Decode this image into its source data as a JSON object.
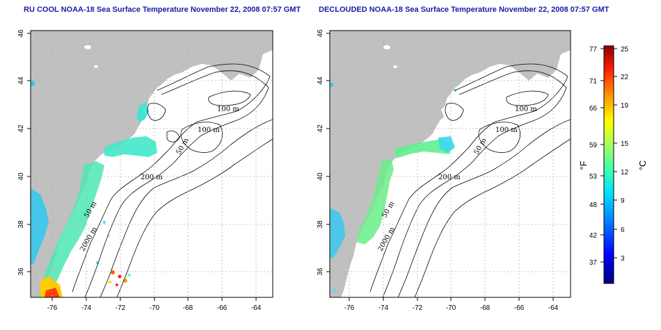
{
  "panels": [
    {
      "id": "left",
      "title": "RU COOL NOAA-18 Sea Surface Temperature November 22, 2008 07:57 GMT"
    },
    {
      "id": "right",
      "title": "DECLOUDED NOAA-18 Sea Surface Temperature November 22, 2008 07:57 GMT"
    }
  ],
  "axes": {
    "lon_ticks": [
      "-76",
      "-74",
      "-72",
      "-70",
      "-68",
      "-66",
      "-64"
    ],
    "lat_ticks": [
      "46",
      "44",
      "42",
      "40",
      "38",
      "36"
    ],
    "lon_range": [
      -77.2,
      -62.8
    ],
    "lat_range": [
      35,
      46
    ],
    "grid": true
  },
  "contour_labels": [
    "100 m",
    "100 m",
    "50 m",
    "200 m",
    "50 m",
    "2000 m"
  ],
  "colorbar": {
    "fahrenheit_label": "°F",
    "celsius_label": "°C",
    "fahrenheit_ticks": [
      "77",
      "71",
      "66",
      "59",
      "53",
      "48",
      "42",
      "37"
    ],
    "celsius_ticks": [
      "25",
      "22",
      "19",
      "15",
      "12",
      "9",
      "6",
      "3"
    ],
    "celsius_range": [
      0,
      25
    ],
    "colors": [
      "#00007f",
      "#0000ff",
      "#0080ff",
      "#00e0ff",
      "#40ffc0",
      "#a0ff60",
      "#ffff00",
      "#ffa000",
      "#ff3000",
      "#a00000"
    ]
  },
  "colors": {
    "land": "#c0c0c0",
    "title": "#1a1aa6",
    "grid": "#b0b0b0"
  }
}
